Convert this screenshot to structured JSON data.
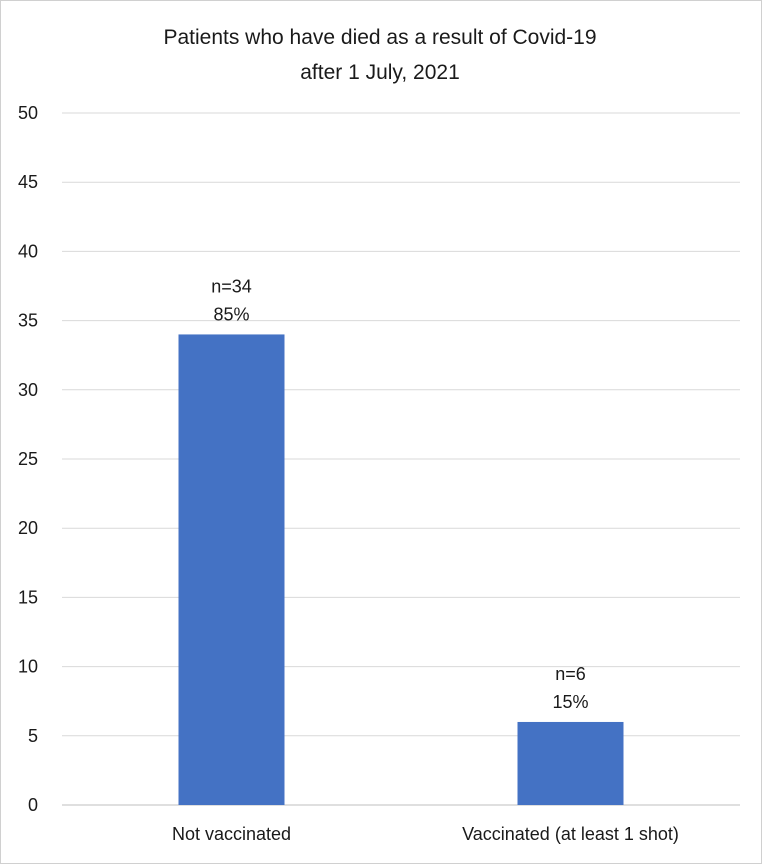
{
  "chart_data": {
    "type": "bar",
    "title_lines": [
      "Patients who have died as a result of Covid-19",
      "after 1 July, 2021"
    ],
    "categories": [
      "Not vaccinated",
      "Vaccinated (at least 1 shot)"
    ],
    "values": [
      34,
      6
    ],
    "data_labels": [
      [
        "n=34",
        "85%"
      ],
      [
        "n=6",
        "15%"
      ]
    ],
    "ylim": [
      0,
      50
    ],
    "yticks": [
      "0",
      "5",
      "10",
      "15",
      "20",
      "25",
      "30",
      "35",
      "40",
      "45",
      "50"
    ],
    "grid": true,
    "legend": "none",
    "bar_color": "#4472C4"
  }
}
